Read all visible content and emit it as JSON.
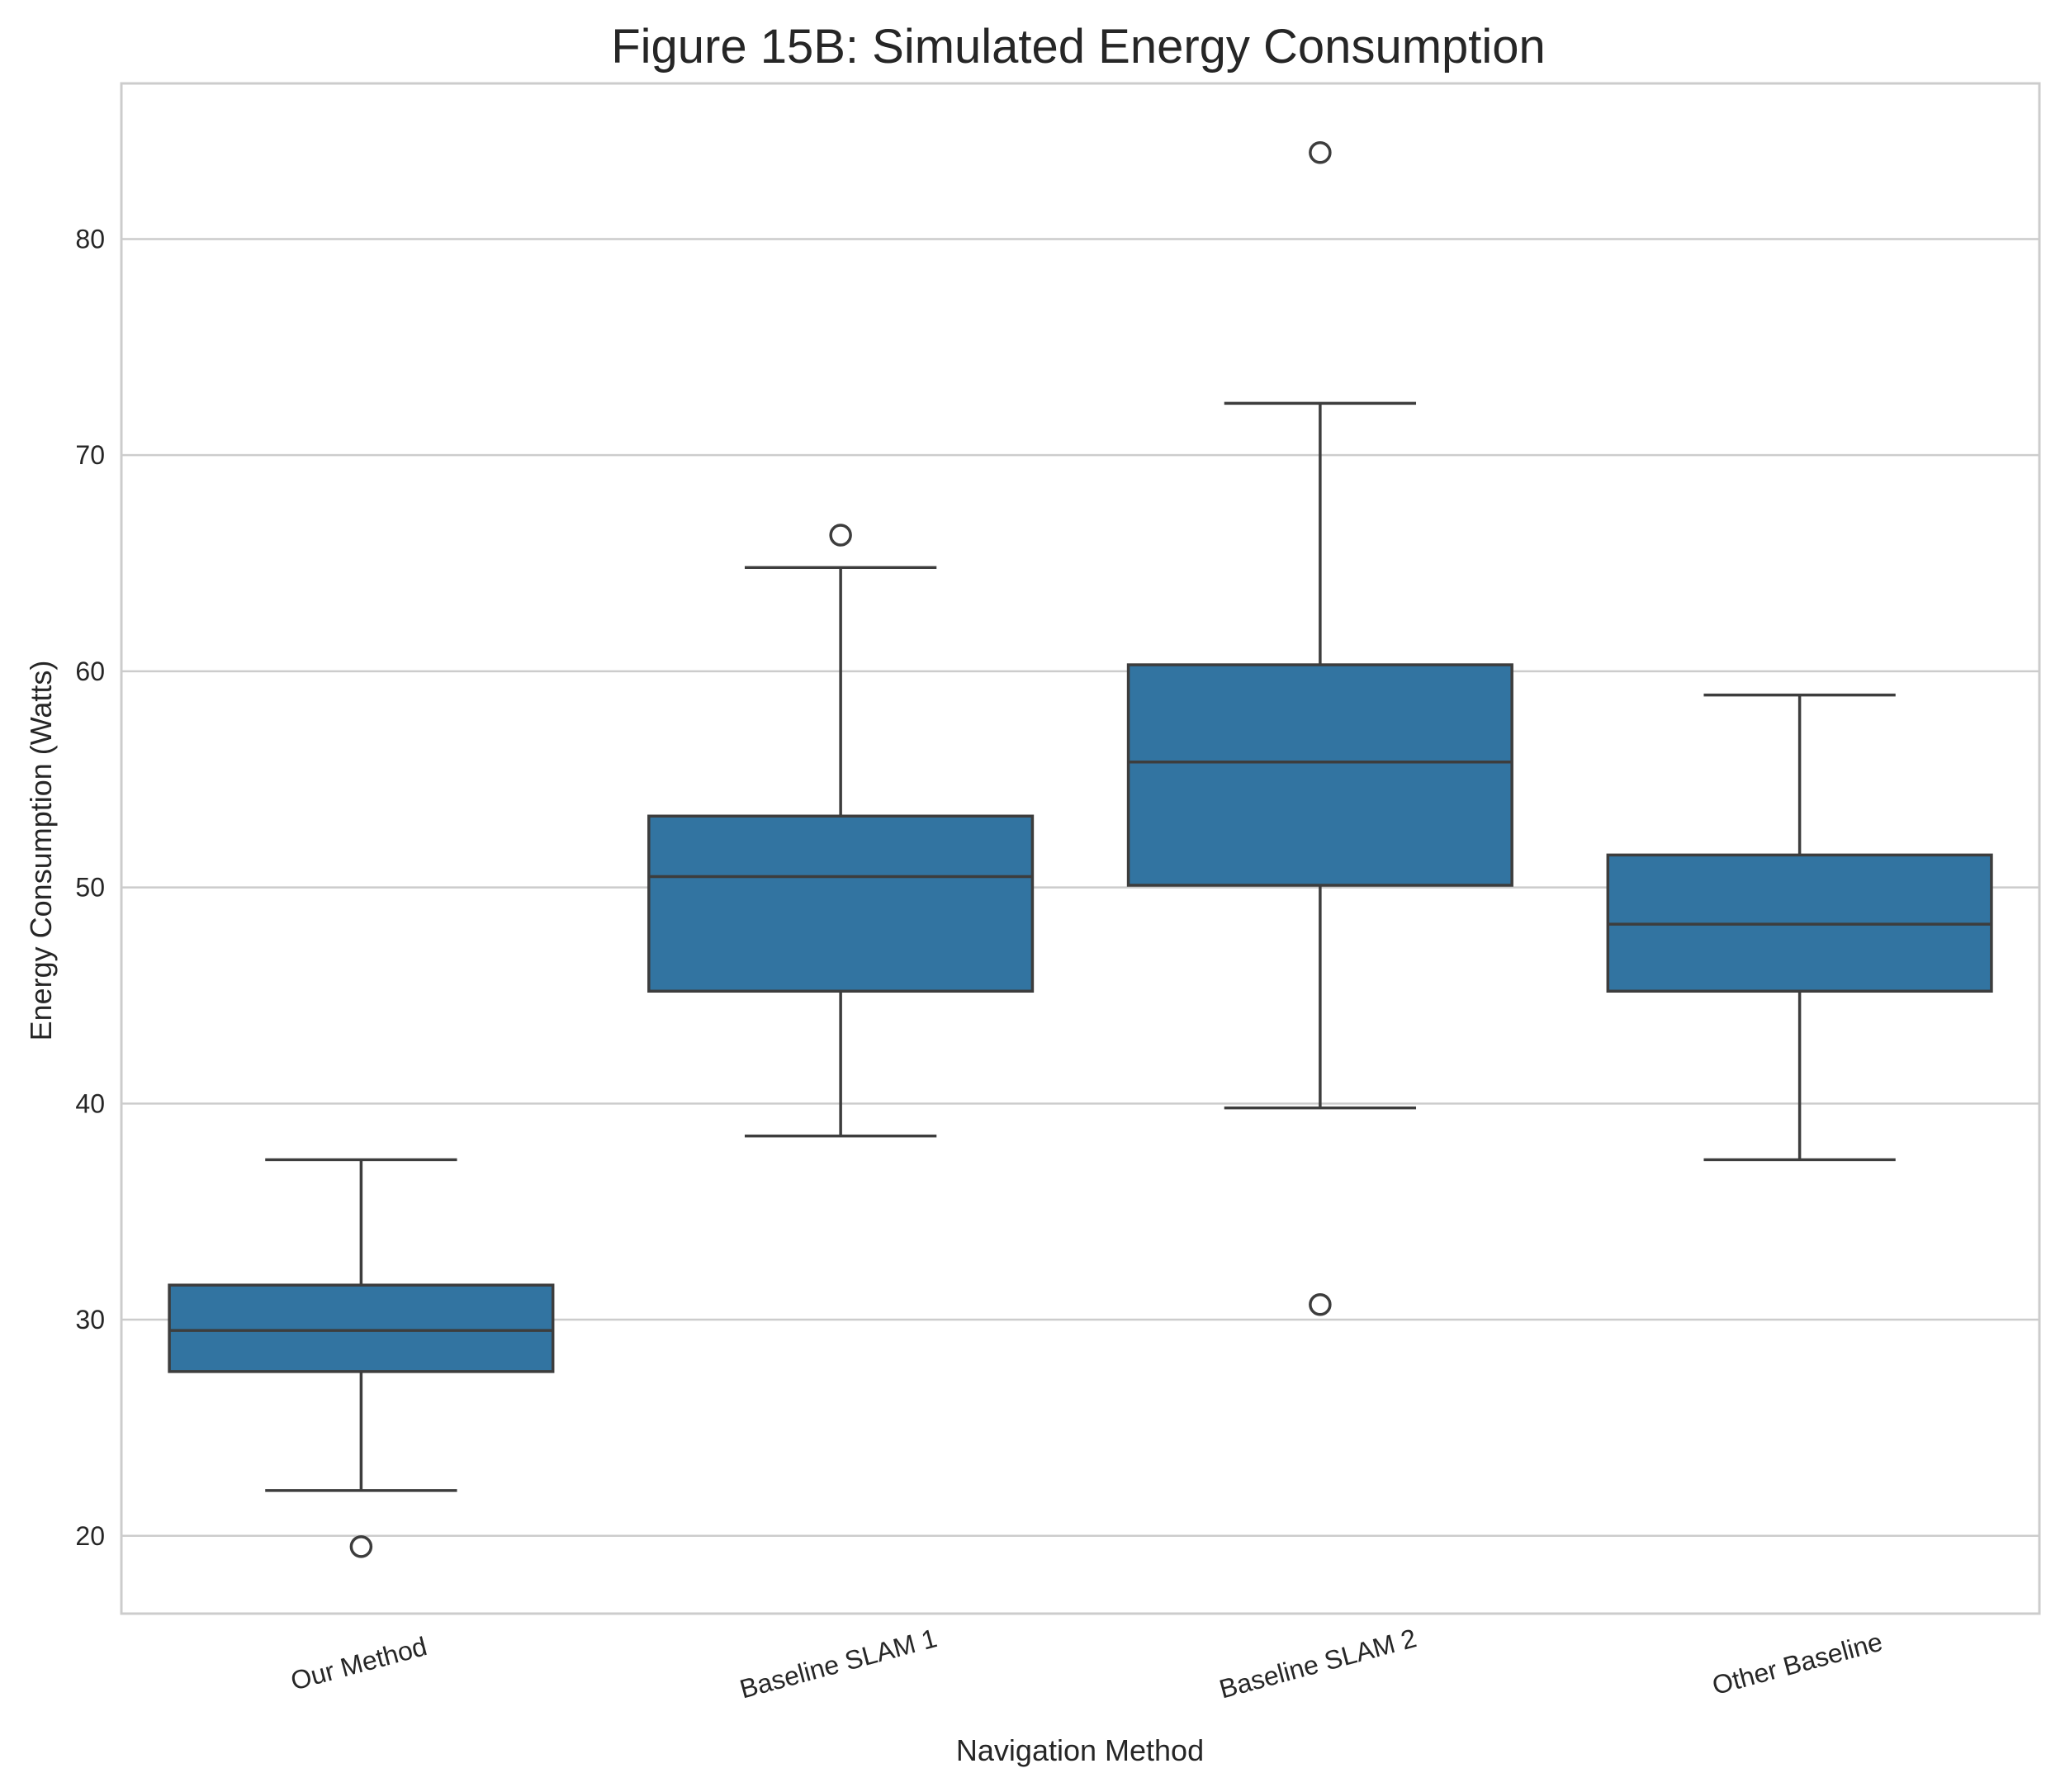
{
  "chart_data": {
    "type": "box",
    "title": "Figure 15B: Simulated Energy Consumption",
    "xlabel": "Navigation Method",
    "ylabel": "Energy Consumption (Watts)",
    "categories": [
      "Our Method",
      "Baseline SLAM 1",
      "Baseline SLAM 2",
      "Other Baseline"
    ],
    "ylim": [
      16.4,
      87.2
    ],
    "yticks": [
      20,
      30,
      40,
      50,
      60,
      70,
      80
    ],
    "grid": "horizontal",
    "color": "#3274a1",
    "boxes": [
      {
        "category": "Our Method",
        "whisker_low": 22.1,
        "q1": 27.6,
        "median": 29.5,
        "q3": 31.6,
        "whisker_high": 37.4,
        "outliers": [
          19.5
        ]
      },
      {
        "category": "Baseline SLAM 1",
        "whisker_low": 38.5,
        "q1": 45.2,
        "median": 50.5,
        "q3": 53.3,
        "whisker_high": 64.8,
        "outliers": [
          66.3
        ]
      },
      {
        "category": "Baseline SLAM 2",
        "whisker_low": 39.8,
        "q1": 50.1,
        "median": 55.8,
        "q3": 60.3,
        "whisker_high": 72.4,
        "outliers": [
          84.0,
          30.7
        ]
      },
      {
        "category": "Other Baseline",
        "whisker_low": 37.4,
        "q1": 45.2,
        "median": 48.3,
        "q3": 51.5,
        "whisker_high": 58.9,
        "outliers": []
      }
    ]
  }
}
